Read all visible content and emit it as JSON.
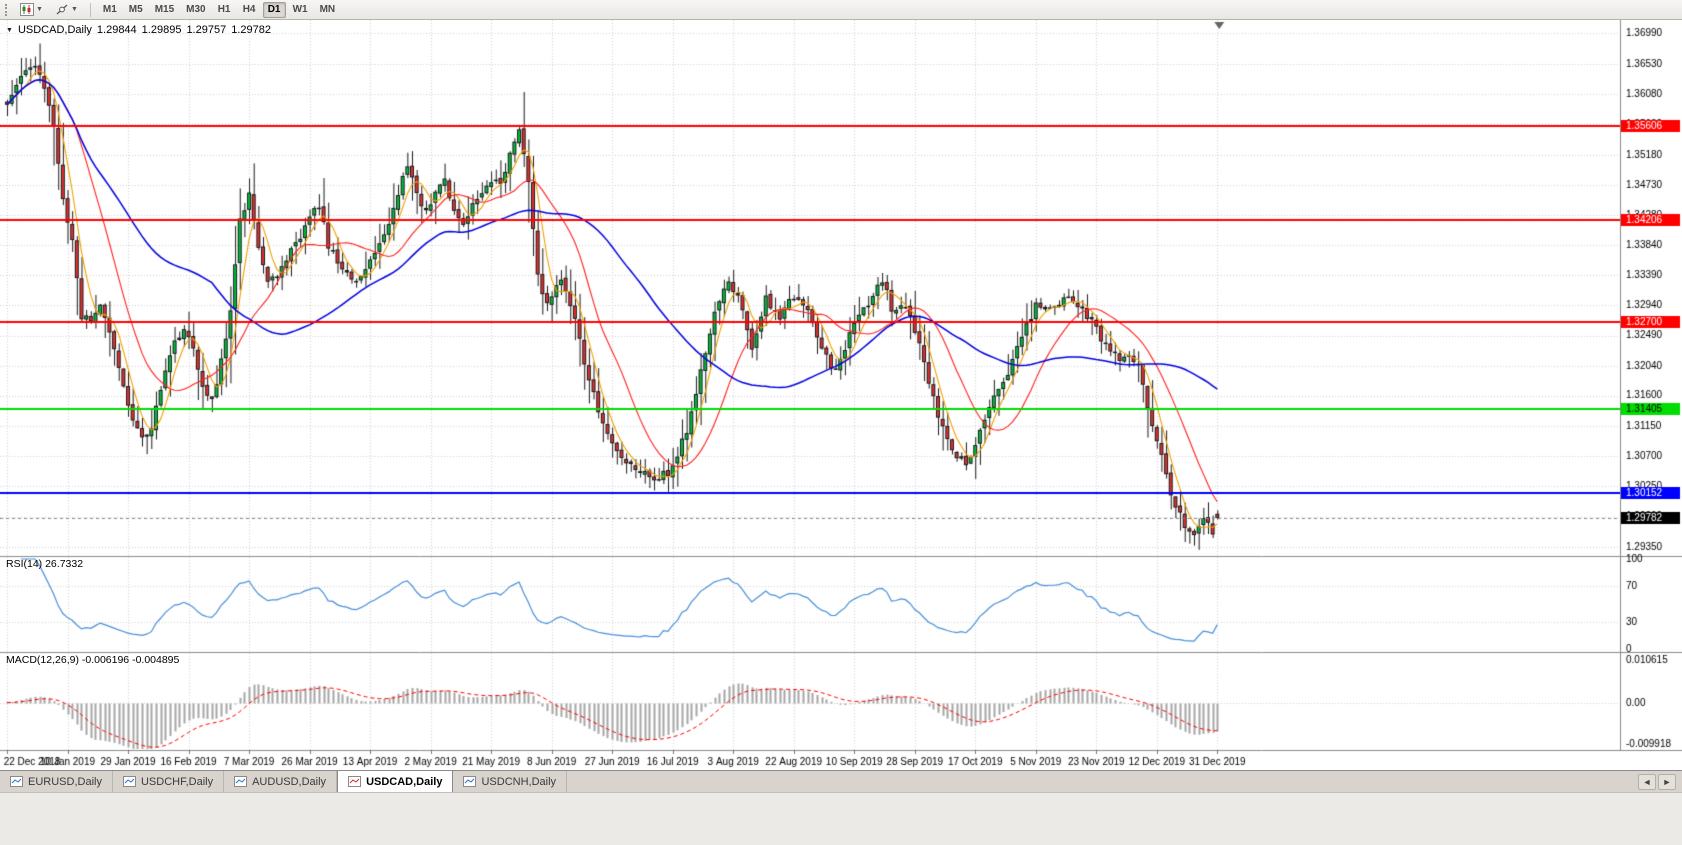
{
  "toolbar": {
    "timeframes": [
      "M1",
      "M5",
      "M15",
      "M30",
      "H1",
      "H4",
      "D1",
      "W1",
      "MN"
    ],
    "active_timeframe": "D1"
  },
  "chart": {
    "title_symbol": "USDCAD,Daily",
    "title_open": "1.29844",
    "title_high": "1.29895",
    "title_low": "1.29757",
    "title_close": "1.29782",
    "rsi_label": "RSI(14) 26.7332",
    "macd_label": "MACD(12,26,9) -0.006196 -0.004895"
  },
  "tabs": {
    "items": [
      "EURUSD,Daily",
      "USDCHF,Daily",
      "AUDUSD,Daily",
      "USDCAD,Daily",
      "USDCNH,Daily"
    ],
    "active": "USDCAD,Daily"
  },
  "chart_data": {
    "type": "candlestick",
    "symbol": "USDCAD",
    "timeframe": "Daily",
    "n_candles": 261,
    "candles_per_x_label": 13,
    "x_labels": [
      "22 Dec 2018",
      "10 Jan 2019",
      "29 Jan 2019",
      "16 Feb 2019",
      "7 Mar 2019",
      "26 Mar 2019",
      "13 Apr 2019",
      "2 May 2019",
      "21 May 2019",
      "8 Jun 2019",
      "27 Jun 2019",
      "16 Jul 2019",
      "3 Aug 2019",
      "22 Aug 2019",
      "10 Sep 2019",
      "28 Sep 2019",
      "17 Oct 2019",
      "5 Nov 2019",
      "23 Nov 2019",
      "12 Dec 2019",
      "31 Dec 2019"
    ],
    "y_axis_top": 1.3699,
    "y_axis_bottom": 1.2935,
    "y_axis_labels": [
      "1.36990",
      "1.36530",
      "1.36080",
      "1.35630",
      "1.35180",
      "1.34730",
      "1.34280",
      "1.33840",
      "1.33390",
      "1.32940",
      "1.32490",
      "1.32040",
      "1.31600",
      "1.31150",
      "1.30700",
      "1.30250",
      "1.29800",
      "1.29350"
    ],
    "last_candle": {
      "open": 1.29844,
      "high": 1.29895,
      "low": 1.29757,
      "close": 1.29782
    },
    "price_waypoints": [
      [
        0,
        1.3585
      ],
      [
        3,
        1.3632
      ],
      [
        6,
        1.3655
      ],
      [
        8,
        1.361
      ],
      [
        10,
        1.356
      ],
      [
        12,
        1.3455
      ],
      [
        14,
        1.339
      ],
      [
        16,
        1.328
      ],
      [
        18,
        1.327
      ],
      [
        20,
        1.3295
      ],
      [
        23,
        1.3235
      ],
      [
        26,
        1.315
      ],
      [
        28,
        1.311
      ],
      [
        30,
        1.3095
      ],
      [
        32,
        1.314
      ],
      [
        35,
        1.3225
      ],
      [
        38,
        1.326
      ],
      [
        40,
        1.3225
      ],
      [
        42,
        1.3168
      ],
      [
        44,
        1.315
      ],
      [
        46,
        1.321
      ],
      [
        48,
        1.329
      ],
      [
        50,
        1.342
      ],
      [
        52,
        1.3455
      ],
      [
        54,
        1.3382
      ],
      [
        56,
        1.3332
      ],
      [
        58,
        1.334
      ],
      [
        62,
        1.3385
      ],
      [
        66,
        1.3432
      ],
      [
        67,
        1.344
      ],
      [
        69,
        1.3385
      ],
      [
        72,
        1.3342
      ],
      [
        75,
        1.3328
      ],
      [
        78,
        1.3362
      ],
      [
        82,
        1.342
      ],
      [
        86,
        1.35
      ],
      [
        88,
        1.346
      ],
      [
        90,
        1.343
      ],
      [
        93,
        1.3478
      ],
      [
        94,
        1.348
      ],
      [
        96,
        1.344
      ],
      [
        98,
        1.341
      ],
      [
        100,
        1.344
      ],
      [
        103,
        1.347
      ],
      [
        106,
        1.348
      ],
      [
        108,
        1.352
      ],
      [
        110,
        1.3552
      ],
      [
        112,
        1.348
      ],
      [
        114,
        1.334
      ],
      [
        116,
        1.329
      ],
      [
        119,
        1.3338
      ],
      [
        122,
        1.3272
      ],
      [
        125,
        1.318
      ],
      [
        128,
        1.312
      ],
      [
        131,
        1.3078
      ],
      [
        134,
        1.3058
      ],
      [
        137,
        1.3044
      ],
      [
        139,
        1.3036
      ],
      [
        141,
        1.3042
      ],
      [
        143,
        1.3052
      ],
      [
        146,
        1.3108
      ],
      [
        149,
        1.3192
      ],
      [
        152,
        1.329
      ],
      [
        155,
        1.3332
      ],
      [
        158,
        1.329
      ],
      [
        160,
        1.3235
      ],
      [
        163,
        1.3305
      ],
      [
        166,
        1.3272
      ],
      [
        169,
        1.331
      ],
      [
        172,
        1.3288
      ],
      [
        175,
        1.3232
      ],
      [
        178,
        1.3195
      ],
      [
        181,
        1.3248
      ],
      [
        185,
        1.33
      ],
      [
        188,
        1.333
      ],
      [
        190,
        1.3292
      ],
      [
        193,
        1.3298
      ],
      [
        196,
        1.3238
      ],
      [
        199,
        1.3155
      ],
      [
        202,
        1.309
      ],
      [
        205,
        1.3063
      ],
      [
        206,
        1.3058
      ],
      [
        209,
        1.311
      ],
      [
        212,
        1.3155
      ],
      [
        215,
        1.3196
      ],
      [
        218,
        1.3248
      ],
      [
        221,
        1.3295
      ],
      [
        224,
        1.329
      ],
      [
        227,
        1.3305
      ],
      [
        230,
        1.3292
      ],
      [
        233,
        1.3268
      ],
      [
        236,
        1.3235
      ],
      [
        239,
        1.3215
      ],
      [
        241,
        1.3218
      ],
      [
        243,
        1.32
      ],
      [
        245,
        1.3145
      ],
      [
        247,
        1.3092
      ],
      [
        249,
        1.304
      ],
      [
        251,
        1.2992
      ],
      [
        253,
        1.2966
      ],
      [
        255,
        1.2948
      ],
      [
        257,
        1.298
      ],
      [
        259,
        1.2958
      ],
      [
        260,
        1.29782
      ]
    ],
    "spike_highs": [
      [
        6,
        1.3664
      ],
      [
        50,
        1.3468
      ],
      [
        86,
        1.3521
      ],
      [
        110,
        1.3559
      ]
    ],
    "spike_lows": [
      [
        30,
        1.3073
      ],
      [
        139,
        1.3019
      ],
      [
        142,
        1.3017
      ],
      [
        206,
        1.3049
      ],
      [
        254,
        1.294
      ],
      [
        255,
        1.2937
      ]
    ],
    "horizontal_lines": [
      {
        "price": 1.35606,
        "label": "1.35606",
        "color": "#FF0000",
        "text_color": "#FFFFFF"
      },
      {
        "price": 1.34206,
        "label": "1.34206",
        "color": "#FF0000",
        "text_color": "#FFFFFF"
      },
      {
        "price": 1.327,
        "label": "1.32700",
        "color": "#FF0000",
        "text_color": "#FFFFFF"
      },
      {
        "price": 1.31405,
        "label": "1.31405",
        "color": "#00DD00",
        "text_color": "#000000"
      },
      {
        "price": 1.30152,
        "label": "1.30152",
        "color": "#0000FF",
        "text_color": "#FFFFFF"
      }
    ],
    "current_price": {
      "price": 1.29782,
      "label": "1.29782",
      "bg_color": "#000000",
      "text_color": "#FFFFFF"
    },
    "moving_averages": [
      {
        "period": 5,
        "color": "#F0A000"
      },
      {
        "period": 15,
        "color": "#FF2020"
      },
      {
        "period": 45,
        "color": "#0000E0"
      }
    ],
    "candle_style": {
      "up_fill": "#00BE3C",
      "down_fill": "#E23232",
      "outline": "#1A1A1A"
    },
    "rsi": {
      "period": 14,
      "value": 26.7332,
      "color": "#4A90D9",
      "axis_labels": [
        "100",
        "70",
        "30",
        "0"
      ],
      "guide_levels": [
        70,
        30
      ],
      "range": [
        0,
        100
      ]
    },
    "macd": {
      "fast": 12,
      "slow": 26,
      "signal": 9,
      "value_main": -0.006196,
      "value_signal": -0.004895,
      "axis_labels": [
        "0.010615",
        "0.00",
        "-0.009918"
      ],
      "range_top": 0.010615,
      "range_bottom": -0.009918,
      "histogram_color": "#A6A6A6",
      "signal_color": "#FF0000"
    },
    "grid_color": "#D4D4D4"
  }
}
